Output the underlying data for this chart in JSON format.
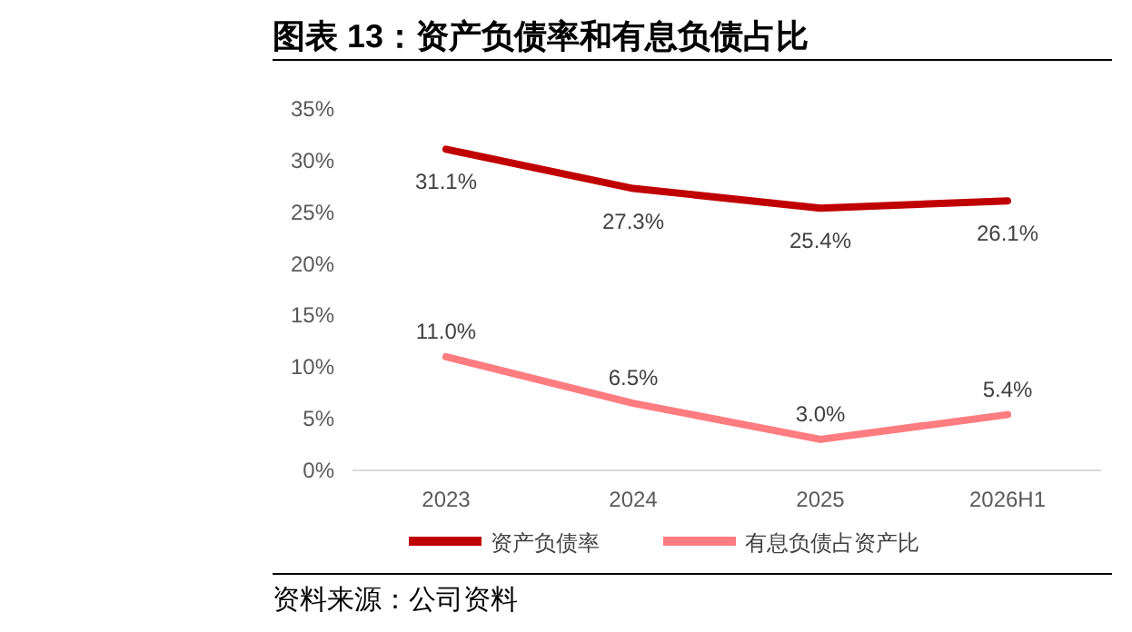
{
  "chart_data": {
    "type": "line",
    "title": "图表 13：资产负债率和有息负债占比",
    "categories": [
      "2023",
      "2024",
      "2025",
      "2026H1"
    ],
    "series": [
      {
        "name": "资产负债率",
        "color": "#c00000",
        "values": [
          31.1,
          27.3,
          25.4,
          26.1
        ],
        "value_labels": [
          "31.1%",
          "27.3%",
          "25.4%",
          "26.1%"
        ]
      },
      {
        "name": "有息负债占资产比",
        "color": "#ff7c80",
        "values": [
          11.0,
          6.5,
          3.0,
          5.4
        ],
        "value_labels": [
          "11.0%",
          "6.5%",
          "3.0%",
          "5.4%"
        ]
      }
    ],
    "ylim": [
      0,
      35
    ],
    "yticks": [
      {
        "value": 0,
        "label": "0%"
      },
      {
        "value": 5,
        "label": "5%"
      },
      {
        "value": 10,
        "label": "10%"
      },
      {
        "value": 15,
        "label": "15%"
      },
      {
        "value": 20,
        "label": "20%"
      },
      {
        "value": 25,
        "label": "25%"
      },
      {
        "value": 30,
        "label": "30%"
      },
      {
        "value": 35,
        "label": "35%"
      }
    ],
    "legend": "bottom",
    "grid": false,
    "marker": "none",
    "line_style": "solid",
    "annotations": [
      "资料来源：公司资料"
    ]
  }
}
